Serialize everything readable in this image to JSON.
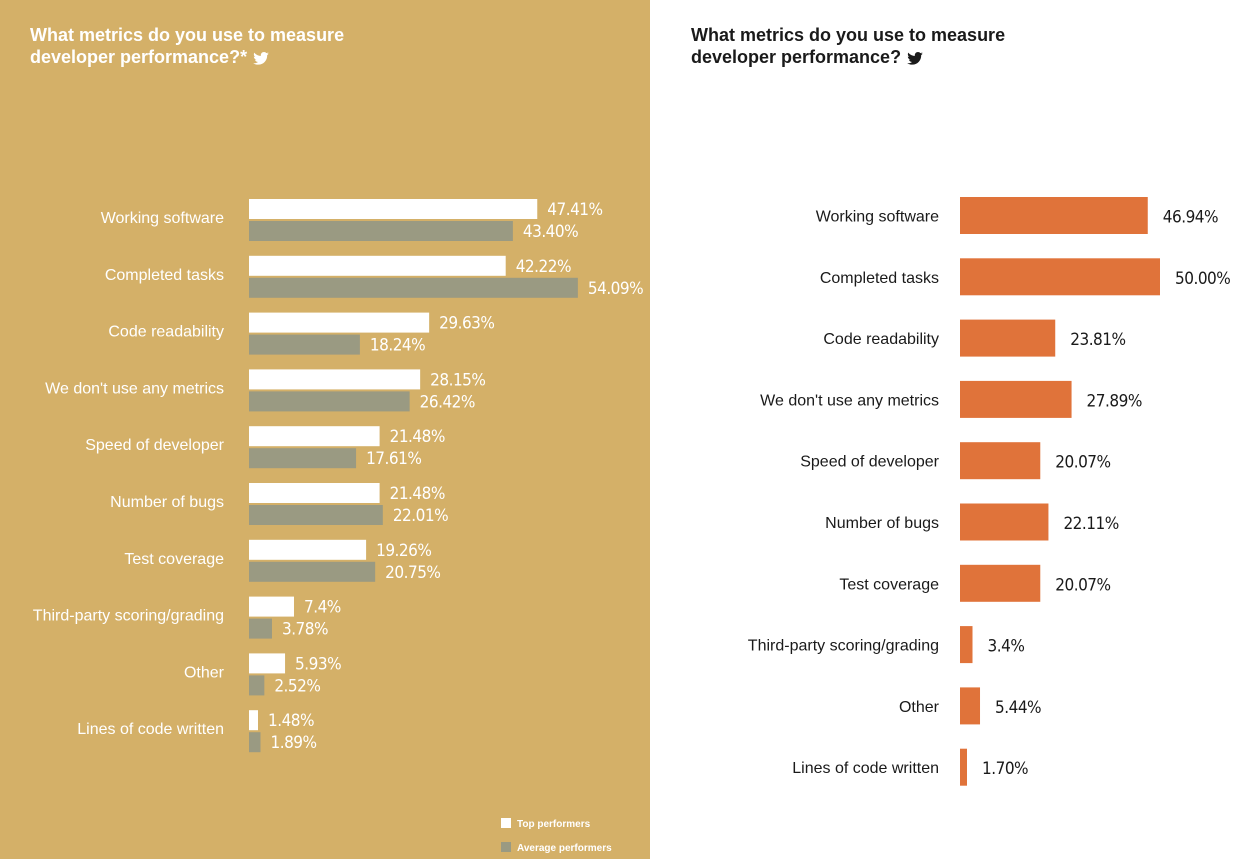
{
  "colors": {
    "left_bg": "#d4b068",
    "top_bar": "#ffffff",
    "avg_bar": "#9a9a82",
    "right_bar": "#e0733a",
    "left_text": "#ffffff",
    "right_text": "#1a1a1a"
  },
  "left": {
    "title": "What metrics do you use to measure developer performance?*",
    "icon": "twitter-bird-icon"
  },
  "right": {
    "title": "What metrics do you use to measure developer performance?",
    "icon": "twitter-bird-icon"
  },
  "chart_data": [
    {
      "type": "bar",
      "orientation": "horizontal",
      "title": "What metrics do you use to measure developer performance?*",
      "categories": [
        "Working software",
        "Completed tasks",
        "Code readability",
        "We don't use any metrics",
        "Speed of developer",
        "Number of bugs",
        "Test coverage",
        "Third-party scoring/grading",
        "Other",
        "Lines of code written"
      ],
      "series": [
        {
          "name": "Top performers",
          "values": [
            47.41,
            42.22,
            29.63,
            28.15,
            21.48,
            21.48,
            19.26,
            7.4,
            5.93,
            1.48
          ],
          "labels": [
            "47.41%",
            "42.22%",
            "29.63%",
            "28.15%",
            "21.48%",
            "21.48%",
            "19.26%",
            "7.4%",
            "5.93%",
            "1.48%"
          ]
        },
        {
          "name": "Average performers",
          "values": [
            43.4,
            54.09,
            18.24,
            26.42,
            17.61,
            22.01,
            20.75,
            3.78,
            2.52,
            1.89
          ],
          "labels": [
            "43.40%",
            "54.09%",
            "18.24%",
            "26.42%",
            "17.61%",
            "22.01%",
            "20.75%",
            "3.78%",
            "2.52%",
            "1.89%"
          ]
        }
      ],
      "legend": "bottom-right",
      "grid": false
    },
    {
      "type": "bar",
      "orientation": "horizontal",
      "title": "What metrics do you use to measure developer performance?",
      "categories": [
        "Working software",
        "Completed tasks",
        "Code readability",
        "We don't use any metrics",
        "Speed of developer",
        "Number of bugs",
        "Test coverage",
        "Third-party scoring/grading",
        "Other",
        "Lines of code written"
      ],
      "values": [
        46.94,
        50.0,
        23.81,
        27.89,
        20.07,
        22.11,
        20.07,
        3.4,
        5.44,
        1.7
      ],
      "labels": [
        "46.94%",
        "50.00%",
        "23.81%",
        "27.89%",
        "20.07%",
        "22.11%",
        "20.07%",
        "3.4%",
        "5.44%",
        "1.70%"
      ],
      "grid": false
    }
  ]
}
